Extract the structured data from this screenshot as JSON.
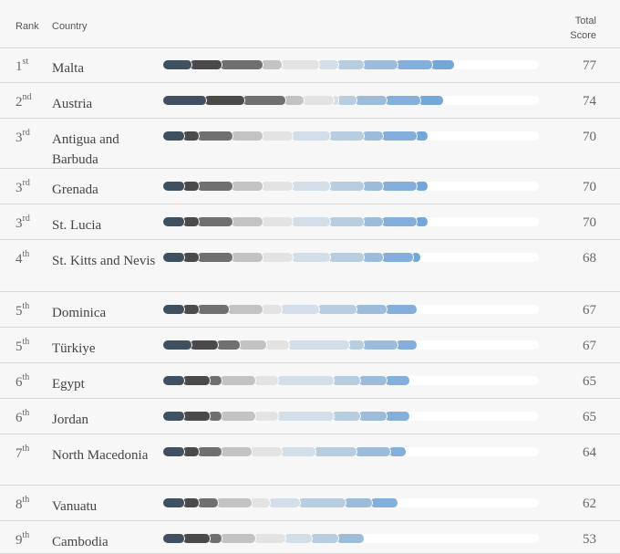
{
  "header": {
    "rank": "Rank",
    "country": "Country",
    "total_line1": "Total",
    "total_line2": "Score"
  },
  "colors": [
    "#3f5061",
    "#4a4a4a",
    "#707070",
    "#c3c3c3",
    "#e3e3e3",
    "#d4dee8",
    "#b8cde0",
    "#9dbcda",
    "#84afda",
    "#74a7d8"
  ],
  "chart_data": {
    "type": "bar",
    "stacked": true,
    "xlim": [
      0,
      100
    ],
    "rows": [
      {
        "rank_num": "1",
        "rank_suffix": "st",
        "country": "Malta",
        "total": 77,
        "segments": [
          7,
          8,
          11,
          5,
          10,
          5,
          7,
          9,
          9,
          6
        ]
      },
      {
        "rank_num": "2",
        "rank_suffix": "nd",
        "country": "Austria",
        "total": 74,
        "segments": [
          11,
          10,
          11,
          5,
          8,
          1,
          5,
          8,
          9,
          6
        ]
      },
      {
        "rank_num": "3",
        "rank_suffix": "rd",
        "country": "Antigua and Barbuda",
        "total": 70,
        "segments": [
          5,
          4,
          9,
          8,
          8,
          10,
          9,
          5,
          9,
          3
        ]
      },
      {
        "rank_num": "3",
        "rank_suffix": "rd",
        "country": "Grenada",
        "total": 70,
        "segments": [
          5,
          4,
          9,
          8,
          8,
          10,
          9,
          5,
          9,
          3
        ]
      },
      {
        "rank_num": "3",
        "rank_suffix": "rd",
        "country": "St. Lucia",
        "total": 70,
        "segments": [
          5,
          4,
          9,
          8,
          8,
          10,
          9,
          5,
          9,
          3
        ]
      },
      {
        "rank_num": "4",
        "rank_suffix": "th",
        "country": "St. Kitts and Nevis",
        "total": 68,
        "segments": [
          5,
          4,
          9,
          8,
          8,
          10,
          9,
          5,
          8,
          2
        ]
      },
      {
        "rank_num": "5",
        "rank_suffix": "th",
        "country": "Dominica",
        "total": 67,
        "segments": [
          5,
          4,
          8,
          9,
          5,
          10,
          10,
          8,
          8,
          0
        ]
      },
      {
        "rank_num": "5",
        "rank_suffix": "th",
        "country": "Türkiye",
        "total": 67,
        "segments": [
          7,
          7,
          6,
          7,
          6,
          16,
          4,
          9,
          5,
          0
        ]
      },
      {
        "rank_num": "6",
        "rank_suffix": "th",
        "country": "Egypt",
        "total": 65,
        "segments": [
          5,
          7,
          3,
          9,
          6,
          15,
          7,
          7,
          6,
          0
        ]
      },
      {
        "rank_num": "6",
        "rank_suffix": "th",
        "country": "Jordan",
        "total": 65,
        "segments": [
          5,
          7,
          3,
          9,
          6,
          15,
          7,
          7,
          6,
          0
        ]
      },
      {
        "rank_num": "7",
        "rank_suffix": "th",
        "country": "North Macedonia",
        "total": 64,
        "segments": [
          5,
          4,
          6,
          8,
          8,
          9,
          11,
          9,
          4,
          0
        ]
      },
      {
        "rank_num": "8",
        "rank_suffix": "th",
        "country": "Vanuatu",
        "total": 62,
        "segments": [
          5,
          4,
          5,
          9,
          5,
          8,
          12,
          7,
          7,
          0
        ]
      },
      {
        "rank_num": "9",
        "rank_suffix": "th",
        "country": "Cambodia",
        "total": 53,
        "segments": [
          5,
          7,
          3,
          9,
          8,
          7,
          7,
          7,
          0,
          0
        ]
      }
    ]
  }
}
